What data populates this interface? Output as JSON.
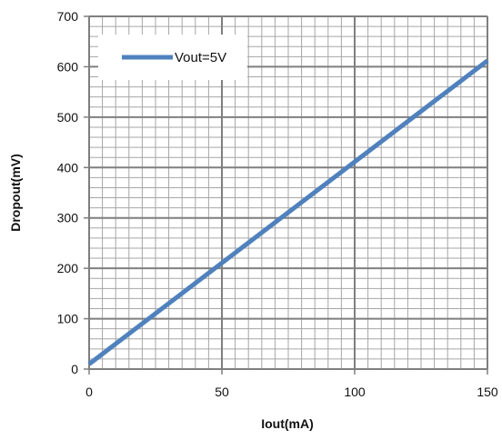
{
  "chart_data": {
    "type": "line",
    "title": "",
    "xlabel": "Iout(mA)",
    "ylabel": "Dropout(mV)",
    "xlim": [
      0,
      150
    ],
    "ylim": [
      0,
      700
    ],
    "x_ticks": [
      0,
      50,
      100,
      150
    ],
    "y_ticks": [
      0,
      100,
      200,
      300,
      400,
      500,
      600,
      700
    ],
    "x_tick_labels": [
      "0",
      "50",
      "100",
      "150"
    ],
    "y_tick_labels": [
      "0",
      "100",
      "200",
      "300",
      "400",
      "500",
      "600",
      "700"
    ],
    "grid": true,
    "legend_position": "top-left",
    "series": [
      {
        "name": "Vout=5V",
        "color": "#4f81bd",
        "x": [
          0,
          150
        ],
        "y": [
          10,
          612
        ]
      }
    ]
  }
}
